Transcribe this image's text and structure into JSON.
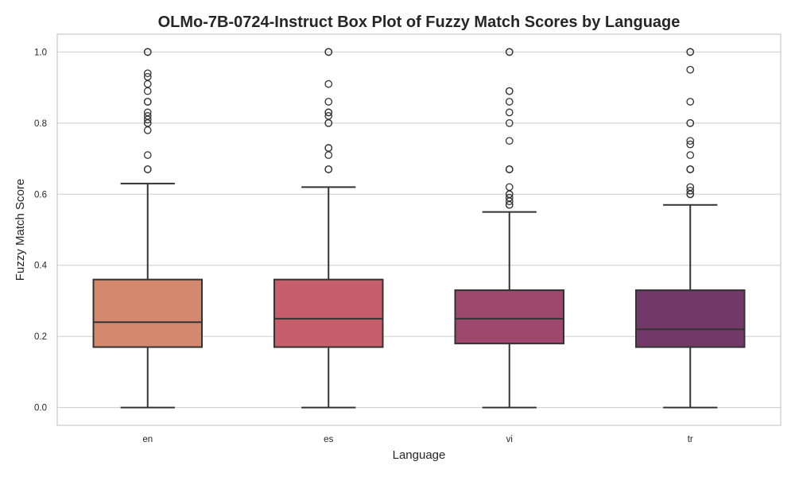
{
  "chart_data": {
    "type": "box",
    "title": "OLMo-7B-0724-Instruct Box Plot of Fuzzy Match Scores by Language",
    "xlabel": "Language",
    "ylabel": "Fuzzy Match Score",
    "ylim": [
      -0.05,
      1.05
    ],
    "yticks": [
      0.0,
      0.2,
      0.4,
      0.6,
      0.8,
      1.0
    ],
    "ytick_labels": [
      "0.0",
      "0.2",
      "0.4",
      "0.6",
      "0.8",
      "1.0"
    ],
    "grid": "horizontal",
    "categories": [
      "en",
      "es",
      "vi",
      "tr"
    ],
    "boxes": [
      {
        "category": "en",
        "color": "#d4896f",
        "whisker_low": 0.0,
        "q1": 0.17,
        "median": 0.24,
        "q3": 0.36,
        "whisker_high": 0.63,
        "outliers": [
          0.67,
          0.67,
          0.71,
          0.78,
          0.8,
          0.8,
          0.81,
          0.82,
          0.83,
          0.86,
          0.86,
          0.89,
          0.91,
          0.93,
          0.94,
          1.0,
          1.0
        ]
      },
      {
        "category": "es",
        "color": "#c65f6b",
        "whisker_low": 0.0,
        "q1": 0.17,
        "median": 0.25,
        "q3": 0.36,
        "whisker_high": 0.62,
        "outliers": [
          0.67,
          0.67,
          0.71,
          0.73,
          0.73,
          0.8,
          0.8,
          0.82,
          0.83,
          0.83,
          0.86,
          0.91,
          1.0,
          1.0
        ]
      },
      {
        "category": "vi",
        "color": "#9d486c",
        "whisker_low": 0.0,
        "q1": 0.18,
        "median": 0.25,
        "q3": 0.33,
        "whisker_high": 0.55,
        "outliers": [
          0.57,
          0.57,
          0.58,
          0.59,
          0.6,
          0.6,
          0.62,
          0.67,
          0.67,
          0.67,
          0.75,
          0.8,
          0.83,
          0.86,
          0.89,
          0.89,
          1.0,
          1.0
        ]
      },
      {
        "category": "tr",
        "color": "#713868",
        "whisker_low": 0.0,
        "q1": 0.17,
        "median": 0.22,
        "q3": 0.33,
        "whisker_high": 0.57,
        "outliers": [
          0.6,
          0.6,
          0.61,
          0.62,
          0.67,
          0.67,
          0.67,
          0.71,
          0.74,
          0.75,
          0.8,
          0.8,
          0.86,
          0.95,
          1.0,
          1.0
        ]
      }
    ]
  }
}
